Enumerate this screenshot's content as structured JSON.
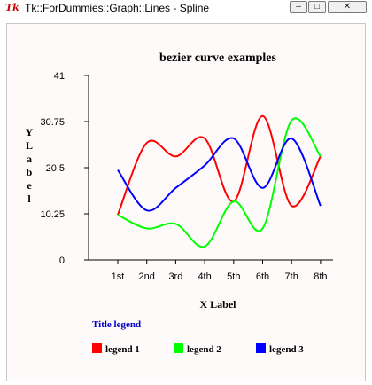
{
  "window": {
    "title": "Tk::ForDummies::Graph::Lines - Spline",
    "icon_text": "Tk",
    "controls": [
      "minimize",
      "maximize",
      "close"
    ]
  },
  "chart_data": {
    "type": "line",
    "title": "bezier curve examples",
    "xlabel": "X Label",
    "ylabel": "Y Label",
    "categories": [
      "1st",
      "2nd",
      "3rd",
      "4th",
      "5th",
      "6th",
      "7th",
      "8th"
    ],
    "yticks": [
      "0",
      "10.25",
      "20.5",
      "30.75",
      "41"
    ],
    "ylim": [
      0,
      41
    ],
    "smooth": true,
    "legend_title": "Title legend",
    "legend_position": "bottom",
    "series": [
      {
        "name": "legend 1",
        "color": "#ff0000",
        "values": [
          10,
          26,
          23,
          27,
          13,
          32,
          12,
          23
        ]
      },
      {
        "name": "legend 2",
        "color": "#00ff00",
        "values": [
          10,
          7,
          8,
          3,
          13,
          7,
          31,
          23
        ]
      },
      {
        "name": "legend 3",
        "color": "#0000ff",
        "values": [
          20,
          11,
          16,
          21,
          27,
          16,
          27,
          12
        ]
      }
    ]
  }
}
